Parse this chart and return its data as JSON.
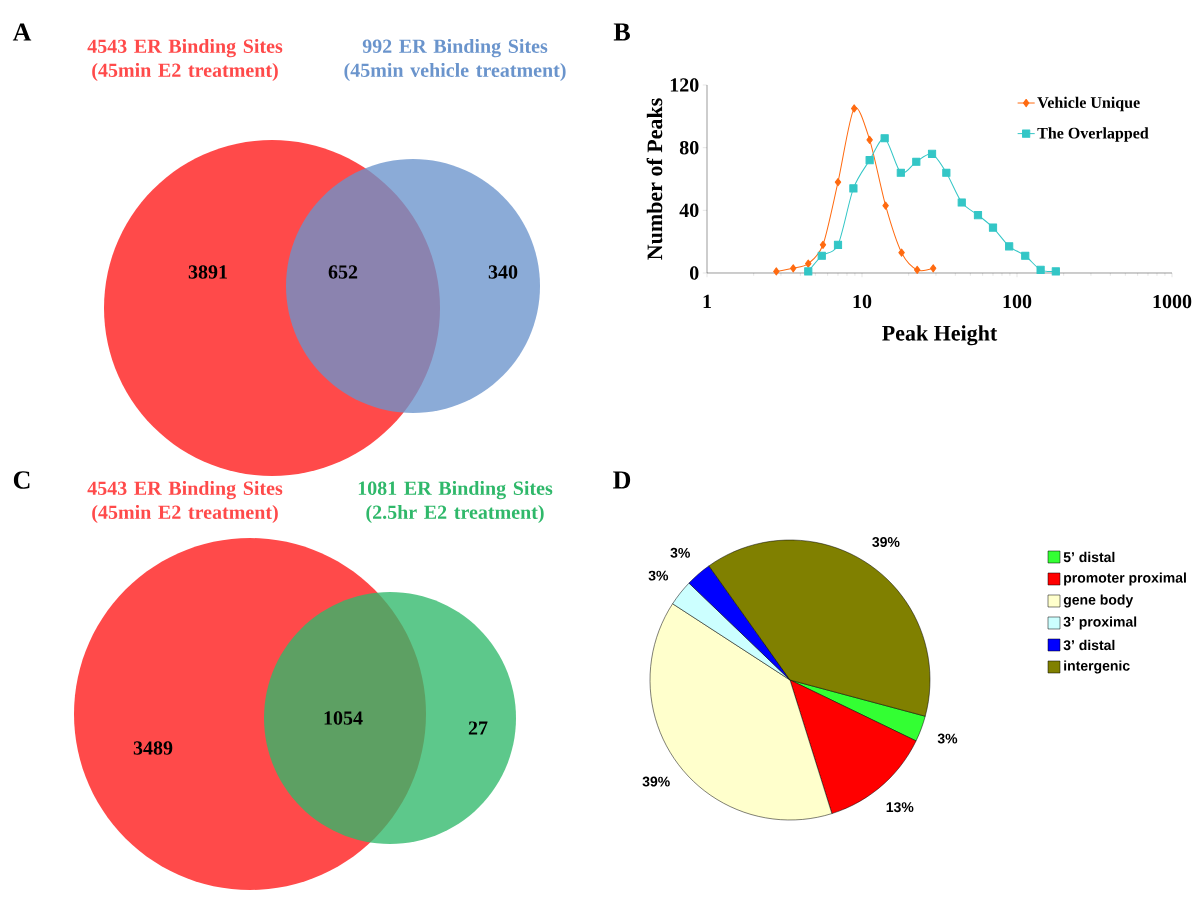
{
  "chart_data": [
    {
      "type": "other",
      "annotations": [
        "A",
        "3891",
        "652",
        "340"
      ],
      "series": [
        {
          "name": "4543 ER Binding Sites (45min E2 treatment)",
          "color": "#ff4a4a"
        },
        {
          "name": "992 ER Binding Sites (45min vehicle treatment)",
          "color": "#6a94cc"
        }
      ]
    },
    {
      "type": "line",
      "annotations": [
        "B"
      ],
      "xlabel": "Peak Height",
      "ylabel": "Number of Peaks",
      "log": "x",
      "xlim": [
        1,
        1000
      ],
      "xticks": [
        1,
        10,
        100,
        1000
      ],
      "ylim": [
        0,
        120
      ],
      "yticks": [
        0,
        40,
        80,
        120
      ],
      "legend": "top right",
      "series": [
        {
          "name": "Vehicle Unique",
          "color": "#ff6a10",
          "marker": "diamond",
          "x": [
            2.8,
            3.6,
            4.5,
            5.6,
            7.0,
            8.9,
            11.2,
            14.2,
            18,
            22.7,
            28.8
          ],
          "values": [
            1,
            3,
            6,
            18,
            58,
            105,
            85,
            43,
            13,
            2,
            3
          ]
        },
        {
          "name": "The Overlapped",
          "color": "#33c6c6",
          "marker": "square",
          "x": [
            4.5,
            5.5,
            7.0,
            8.8,
            11.2,
            14.0,
            17.8,
            22.4,
            28.3,
            35,
            44,
            56,
            70,
            89,
            113,
            142,
            178
          ],
          "values": [
            1,
            11,
            18,
            54,
            72,
            86,
            64,
            71,
            76,
            64,
            45,
            37,
            29,
            17,
            11,
            2,
            1
          ]
        }
      ]
    },
    {
      "type": "other",
      "annotations": [
        "C",
        "3489",
        "1054",
        "27"
      ],
      "series": [
        {
          "name": "4543 ER Binding Sites (45min E2 treatment)",
          "color": "#ff4a4a"
        },
        {
          "name": "1081 ER Binding Sites (2.5hr E2 treatment)",
          "color": "#2fb86a"
        }
      ]
    },
    {
      "type": "pie",
      "annotations": [
        "D"
      ],
      "legend": "right",
      "categories": [
        "5’ distal",
        "promoter proximal",
        "gene body",
        "3’ proximal",
        "3’ distal",
        "intergenic"
      ],
      "values": [
        3,
        13,
        39,
        3,
        3,
        39
      ],
      "colors": [
        "#33ff33",
        "#ff0000",
        "#ffffcc",
        "#ccffff",
        "#0000ff",
        "#808000"
      ],
      "value_labels": [
        "3%",
        "13%",
        "39%",
        "3%",
        "3%",
        "39%"
      ]
    }
  ]
}
